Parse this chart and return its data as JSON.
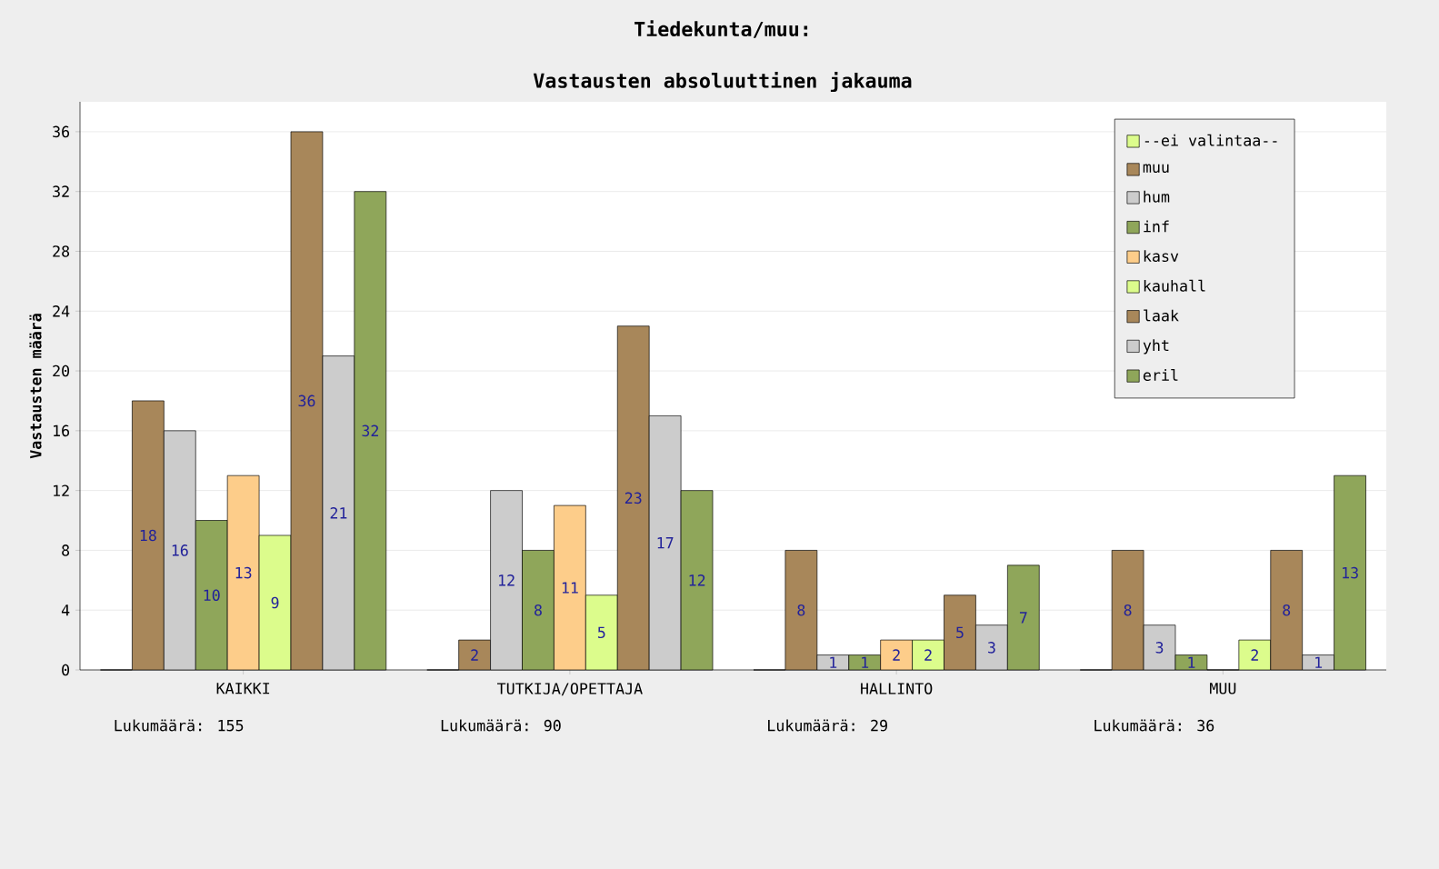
{
  "chart_data": {
    "type": "bar",
    "title": "Tiedekunta/muu:",
    "subtitle": "Vastausten absoluuttinen jakauma",
    "ylabel": "Vastausten määrä",
    "categories": [
      "KAIKKI",
      "TUTKIJA/OPETTAJA",
      "HALLINTO",
      "MUU"
    ],
    "series": [
      {
        "name": "--ei valintaa--",
        "color": "#dcfc8c",
        "values": [
          0,
          0,
          0,
          0
        ],
        "value_labels": [
          null,
          null,
          null,
          null
        ]
      },
      {
        "name": "muu",
        "color": "#a8875a",
        "values": [
          18,
          2,
          8,
          8
        ],
        "value_labels": [
          "18",
          "2",
          "8",
          "8"
        ]
      },
      {
        "name": "hum",
        "color": "#cccccc",
        "values": [
          16,
          12,
          1,
          3
        ],
        "value_labels": [
          "16",
          "12",
          "1",
          "3"
        ]
      },
      {
        "name": "inf",
        "color": "#8fa65a",
        "values": [
          10,
          8,
          1,
          1
        ],
        "value_labels": [
          "10",
          "8",
          "1",
          "1"
        ]
      },
      {
        "name": "kasv",
        "color": "#fdcd8a",
        "values": [
          13,
          11,
          2,
          0
        ],
        "value_labels": [
          "13",
          "11",
          "2",
          null
        ]
      },
      {
        "name": "kauhall",
        "color": "#dcfc8c",
        "values": [
          9,
          5,
          2,
          2
        ],
        "value_labels": [
          "9",
          "5",
          "2",
          "2"
        ]
      },
      {
        "name": "laak",
        "color": "#a8875a",
        "values": [
          36,
          23,
          5,
          8
        ],
        "value_labels": [
          "36",
          "23",
          "5",
          "8"
        ]
      },
      {
        "name": "yht",
        "color": "#cccccc",
        "values": [
          21,
          17,
          3,
          1
        ],
        "value_labels": [
          "21",
          "17",
          "3",
          "1"
        ]
      },
      {
        "name": "eril",
        "color": "#8fa65a",
        "values": [
          32,
          12,
          7,
          13
        ],
        "value_labels": [
          "32",
          "12",
          "7",
          "13"
        ]
      }
    ],
    "ylim": [
      0,
      38
    ],
    "yticks": [
      0,
      4,
      8,
      12,
      16,
      20,
      24,
      28,
      32,
      36
    ],
    "grid": "y",
    "legend": "top right",
    "annotations": [
      "Lukumäärä: 155",
      "Lukumäärä: 90",
      "Lukumäärä: 29",
      "Lukumäärä: 36"
    ]
  }
}
